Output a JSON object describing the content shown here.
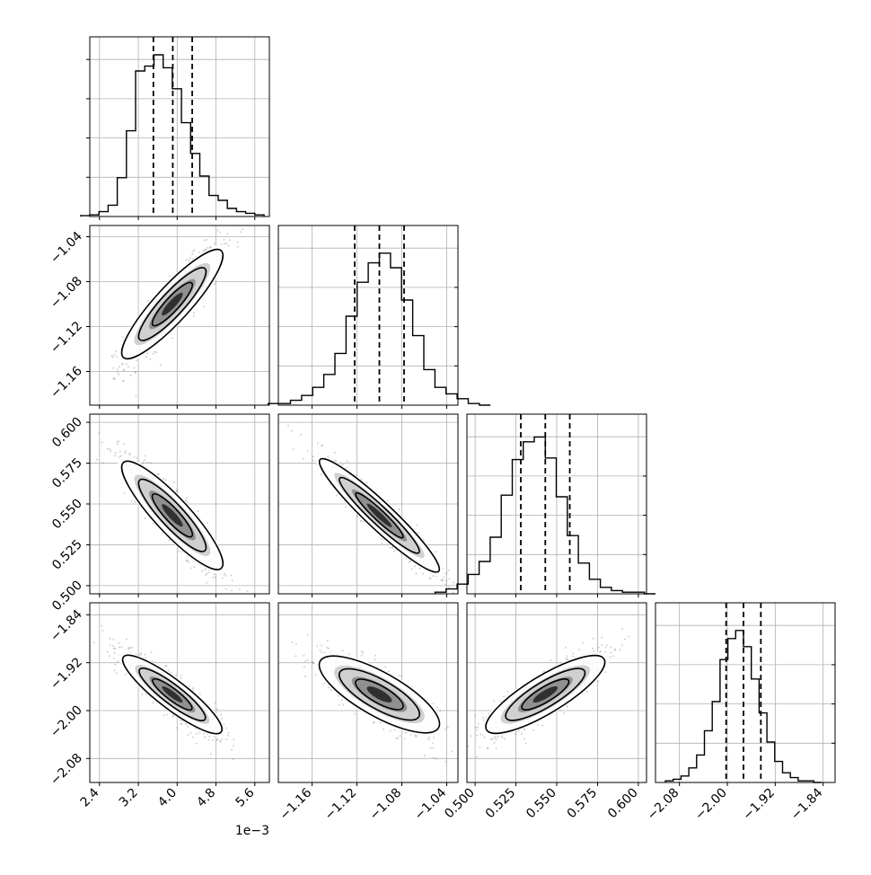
{
  "chart_data": {
    "type": "corner",
    "figure": "corner plot of posterior samples for 4 parameters",
    "grid": true,
    "contour_levels": 3,
    "quantile_lines": "dashed",
    "params": [
      {
        "id": "p0",
        "range": [
          0.0022,
          0.0059
        ],
        "ticks": [
          0.0024,
          0.0032,
          0.004,
          0.0048,
          0.0056
        ],
        "tick_labels": [
          "2.4",
          "3.2",
          "4.0",
          "4.8",
          "5.6"
        ],
        "offset_label": "1e−3",
        "mean": 0.0039,
        "sd": 0.00042,
        "quantiles": [
          0.00351,
          0.00391,
          0.00431
        ]
      },
      {
        "id": "p1",
        "range": [
          -1.19,
          -1.03
        ],
        "ticks": [
          -1.16,
          -1.12,
          -1.08,
          -1.04
        ],
        "tick_labels": [
          "−1.16",
          "−1.12",
          "−1.08",
          "−1.04"
        ],
        "mean": -1.1,
        "sd": 0.022,
        "quantiles": [
          -1.122,
          -1.1,
          -1.078
        ]
      },
      {
        "id": "p2",
        "range": [
          0.495,
          0.605
        ],
        "ticks": [
          0.5,
          0.525,
          0.55,
          0.575,
          0.6
        ],
        "tick_labels": [
          "0.500",
          "0.525",
          "0.550",
          "0.575",
          "0.600"
        ],
        "mean": 0.543,
        "sd": 0.015,
        "quantiles": [
          0.528,
          0.543,
          0.558
        ]
      },
      {
        "id": "p3",
        "range": [
          -2.12,
          -1.82
        ],
        "ticks": [
          -2.08,
          -2.0,
          -1.92,
          -1.84
        ],
        "tick_labels": [
          "−2.08",
          "−2.00",
          "−1.92",
          "−1.84"
        ],
        "mean": -1.973,
        "sd": 0.029,
        "quantiles": [
          -2.002,
          -1.973,
          -1.944
        ]
      }
    ],
    "histograms": [
      {
        "param": "p0",
        "counts": [
          0.005,
          0.01,
          0.03,
          0.07,
          0.24,
          0.53,
          0.9,
          0.93,
          1.0,
          0.92,
          0.79,
          0.58,
          0.39,
          0.25,
          0.13,
          0.1,
          0.05,
          0.03,
          0.02,
          0.01
        ]
      },
      {
        "param": "p1",
        "counts": [
          0.01,
          0.01,
          0.03,
          0.06,
          0.11,
          0.19,
          0.32,
          0.55,
          0.76,
          0.88,
          0.94,
          0.85,
          0.65,
          0.43,
          0.22,
          0.11,
          0.07,
          0.04,
          0.01,
          0.0
        ]
      },
      {
        "param": "p2",
        "counts": [
          0.01,
          0.03,
          0.06,
          0.12,
          0.2,
          0.35,
          0.61,
          0.83,
          0.94,
          0.97,
          0.84,
          0.6,
          0.36,
          0.19,
          0.09,
          0.04,
          0.02,
          0.01,
          0.01,
          0.0
        ]
      },
      {
        "param": "p3",
        "counts": [
          0.01,
          0.02,
          0.04,
          0.09,
          0.17,
          0.32,
          0.5,
          0.76,
          0.89,
          0.94,
          0.84,
          0.64,
          0.43,
          0.25,
          0.13,
          0.06,
          0.03,
          0.01,
          0.01,
          0.0
        ]
      }
    ],
    "correlations": [
      {
        "x": "p0",
        "y": "p1",
        "r": 0.9
      },
      {
        "x": "p0",
        "y": "p2",
        "r": -0.9
      },
      {
        "x": "p1",
        "y": "p2",
        "r": -0.95
      },
      {
        "x": "p0",
        "y": "p3",
        "r": -0.9
      },
      {
        "x": "p1",
        "y": "p3",
        "r": -0.8
      },
      {
        "x": "p2",
        "y": "p3",
        "r": 0.85
      }
    ]
  }
}
